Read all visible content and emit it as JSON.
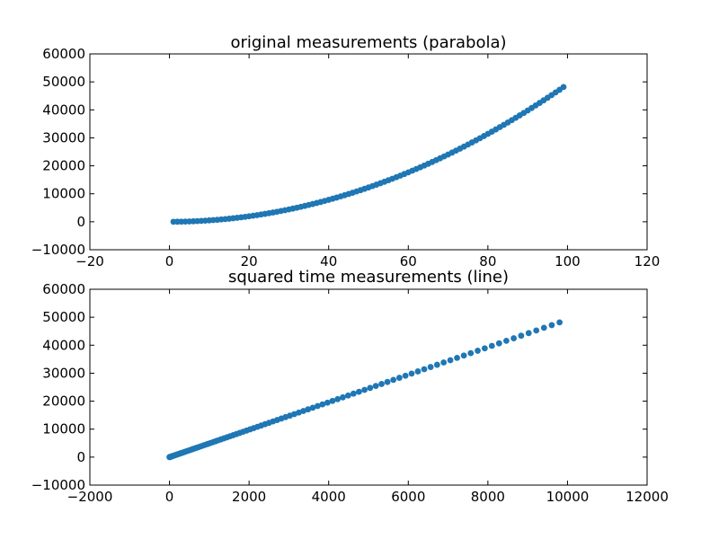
{
  "chart_data": [
    {
      "type": "scatter",
      "title": "original measurements (parabola)",
      "xlabel": "",
      "ylabel": "",
      "xlim": [
        -20,
        120
      ],
      "ylim": [
        -10000,
        60000
      ],
      "xticks": [
        -20,
        0,
        20,
        40,
        60,
        80,
        100,
        120
      ],
      "yticks": [
        -10000,
        0,
        10000,
        20000,
        30000,
        40000,
        50000,
        60000
      ],
      "xtick_labels": [
        "−20",
        "0",
        "20",
        "40",
        "60",
        "80",
        "100",
        "120"
      ],
      "ytick_labels": [
        "−10000",
        "0",
        "10000",
        "20000",
        "30000",
        "40000",
        "50000",
        "60000"
      ],
      "grid": false,
      "marker_color": "#1f77b4",
      "series": [
        {
          "x": [
            1,
            2,
            3,
            4,
            5,
            6,
            7,
            8,
            9,
            10,
            11,
            12,
            13,
            14,
            15,
            16,
            17,
            18,
            19,
            20,
            21,
            22,
            23,
            24,
            25,
            26,
            27,
            28,
            29,
            30,
            31,
            32,
            33,
            34,
            35,
            36,
            37,
            38,
            39,
            40,
            41,
            42,
            43,
            44,
            45,
            46,
            47,
            48,
            49,
            50,
            51,
            52,
            53,
            54,
            55,
            56,
            57,
            58,
            59,
            60,
            61,
            62,
            63,
            64,
            65,
            66,
            67,
            68,
            69,
            70,
            71,
            72,
            73,
            74,
            75,
            76,
            77,
            78,
            79,
            80,
            81,
            82,
            83,
            84,
            85,
            86,
            87,
            88,
            89,
            90,
            91,
            92,
            93,
            94,
            95,
            96,
            97,
            98,
            99
          ],
          "y": [
            5,
            20,
            44,
            78,
            123,
            177,
            241,
            314,
            397,
            490,
            593,
            706,
            829,
            961,
            1103,
            1255,
            1417,
            1589,
            1770,
            1961,
            2162,
            2373,
            2593,
            2824,
            3064,
            3314,
            3573,
            3843,
            4122,
            4412,
            4711,
            5019,
            5338,
            5666,
            6005,
            6353,
            6711,
            7078,
            7456,
            7843,
            8240,
            8647,
            9064,
            9491,
            9927,
            10374,
            10830,
            11296,
            11772,
            12257,
            12753,
            13258,
            13774,
            14299,
            14834,
            15379,
            15933,
            16498,
            17072,
            17657,
            18251,
            18855,
            19469,
            20092,
            20726,
            21370,
            22023,
            22686,
            23359,
            24042,
            24735,
            25438,
            26150,
            26873,
            27605,
            28348,
            29100,
            29862,
            30634,
            31416,
            32208,
            33009,
            33821,
            34642,
            35474,
            36315,
            37166,
            38027,
            38898,
            39779,
            40670,
            41571,
            42481,
            43402,
            44332,
            45273,
            46223,
            47183,
            48153
          ]
        }
      ]
    },
    {
      "type": "scatter",
      "title": "squared time measurements (line)",
      "xlabel": "",
      "ylabel": "",
      "xlim": [
        -2000,
        12000
      ],
      "ylim": [
        -10000,
        60000
      ],
      "xticks": [
        -2000,
        0,
        2000,
        4000,
        6000,
        8000,
        10000,
        12000
      ],
      "yticks": [
        -10000,
        0,
        10000,
        20000,
        30000,
        40000,
        50000,
        60000
      ],
      "xtick_labels": [
        "−2000",
        "0",
        "2000",
        "4000",
        "6000",
        "8000",
        "10000",
        "12000"
      ],
      "ytick_labels": [
        "−10000",
        "0",
        "10000",
        "20000",
        "30000",
        "40000",
        "50000",
        "60000"
      ],
      "grid": false,
      "marker_color": "#1f77b4",
      "series": [
        {
          "x": [
            1,
            4,
            9,
            16,
            25,
            36,
            49,
            64,
            81,
            100,
            121,
            144,
            169,
            196,
            225,
            256,
            289,
            324,
            361,
            400,
            441,
            484,
            529,
            576,
            625,
            676,
            729,
            784,
            841,
            900,
            961,
            1024,
            1089,
            1156,
            1225,
            1296,
            1369,
            1444,
            1521,
            1600,
            1681,
            1764,
            1849,
            1936,
            2025,
            2116,
            2209,
            2304,
            2401,
            2500,
            2601,
            2704,
            2809,
            2916,
            3025,
            3136,
            3249,
            3364,
            3481,
            3600,
            3721,
            3844,
            3969,
            4096,
            4225,
            4356,
            4489,
            4624,
            4761,
            4900,
            5041,
            5184,
            5329,
            5476,
            5625,
            5776,
            5929,
            6084,
            6241,
            6400,
            6561,
            6724,
            6889,
            7056,
            7225,
            7396,
            7569,
            7744,
            7921,
            8100,
            8281,
            8464,
            8649,
            8836,
            9025,
            9216,
            9409,
            9604,
            9801
          ],
          "y": [
            5,
            20,
            44,
            78,
            123,
            177,
            241,
            314,
            397,
            490,
            593,
            706,
            829,
            961,
            1103,
            1255,
            1417,
            1589,
            1770,
            1961,
            2162,
            2373,
            2593,
            2824,
            3064,
            3314,
            3573,
            3843,
            4122,
            4412,
            4711,
            5019,
            5338,
            5666,
            6005,
            6353,
            6711,
            7078,
            7456,
            7843,
            8240,
            8647,
            9064,
            9491,
            9927,
            10374,
            10830,
            11296,
            11772,
            12257,
            12753,
            13258,
            13774,
            14299,
            14834,
            15379,
            15933,
            16498,
            17072,
            17657,
            18251,
            18855,
            19469,
            20092,
            20726,
            21370,
            22023,
            22686,
            23359,
            24042,
            24735,
            25438,
            26150,
            26873,
            27605,
            28348,
            29100,
            29862,
            30634,
            31416,
            32208,
            33009,
            33821,
            34642,
            35474,
            36315,
            37166,
            38027,
            38898,
            39779,
            40670,
            41571,
            42481,
            43402,
            44332,
            45273,
            46223,
            47183,
            48153
          ]
        }
      ]
    }
  ]
}
